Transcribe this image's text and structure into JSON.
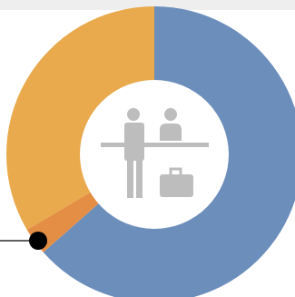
{
  "header_band": {
    "color": "#eeeeee"
  },
  "chart_data": {
    "type": "pie",
    "variant": "donut",
    "title": "",
    "slices": [
      {
        "value": 63.5,
        "color": "#6c8ebb",
        "icon": "blue-slice"
      },
      {
        "value": 3.0,
        "color": "#e48e45",
        "icon": "orange-slice"
      },
      {
        "value": 33.5,
        "color": "#e8aa4d",
        "icon": "amber-slice"
      }
    ],
    "start": "12 o'clock",
    "direction": "clockwise",
    "callout": {
      "target_slice": 1,
      "marker": "black-dot",
      "color": "#000000"
    },
    "center_icon": "check-in-desk-icon",
    "center_icon_color": "#bdbdbd"
  }
}
